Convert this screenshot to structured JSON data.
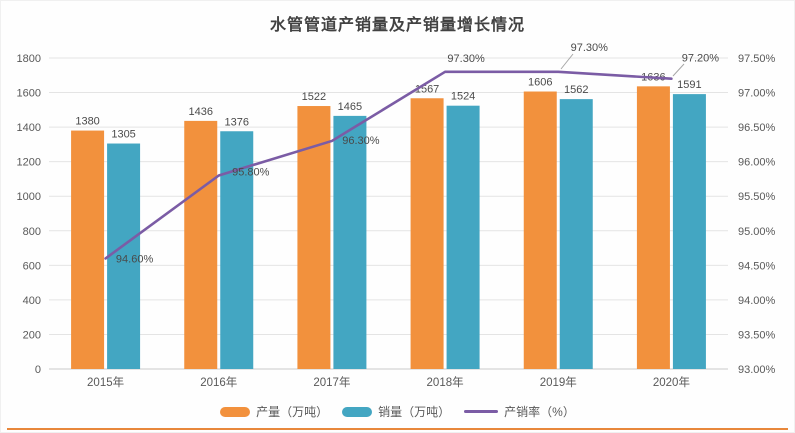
{
  "page": {
    "accent_rule_color": "#E8873B",
    "grid_color": "#E4E4E4",
    "axis_line_color": "#C9C9C9",
    "text_color": "#595959",
    "data_label_color": "#4A4A4A"
  },
  "chart_data": {
    "type": "bar",
    "subtype": "bar-line-combo",
    "title": "水管管道产销量及产销量增长情况",
    "categories": [
      "2015年",
      "2016年",
      "2017年",
      "2018年",
      "2019年",
      "2020年"
    ],
    "series": [
      {
        "name": "产量（万吨）",
        "type": "bar",
        "axis": "left",
        "color": "#F2913D",
        "values": [
          1380,
          1436,
          1522,
          1567,
          1606,
          1636
        ],
        "value_labels": [
          "1380",
          "1436",
          "1522",
          "1567",
          "1606",
          "1636"
        ]
      },
      {
        "name": "销量（万吨）",
        "type": "bar",
        "axis": "left",
        "color": "#43A6C2",
        "values": [
          1305,
          1376,
          1465,
          1524,
          1562,
          1591
        ],
        "value_labels": [
          "1305",
          "1376",
          "1465",
          "1524",
          "1562",
          "1591"
        ]
      },
      {
        "name": "产销率（%）",
        "type": "line",
        "axis": "right",
        "color": "#7B5CA5",
        "values": [
          94.6,
          95.8,
          96.3,
          97.3,
          97.3,
          97.2
        ],
        "point_labels": [
          "94.60%",
          "95.80%",
          "96.30%",
          "97.30%",
          "97.30%",
          "97.20%"
        ]
      }
    ],
    "left_axis": {
      "min": 0,
      "max": 1800,
      "step": 200,
      "tick_labels": [
        "0",
        "200",
        "400",
        "600",
        "800",
        "1000",
        "1200",
        "1400",
        "1600",
        "1800"
      ]
    },
    "right_axis": {
      "min": 93,
      "max": 97.5,
      "step": 0.5,
      "tick_labels": [
        "93.00%",
        "93.50%",
        "94.00%",
        "94.50%",
        "95.00%",
        "95.50%",
        "96.00%",
        "96.50%",
        "97.00%",
        "97.50%"
      ]
    },
    "grid": true,
    "legend_position": "bottom"
  }
}
